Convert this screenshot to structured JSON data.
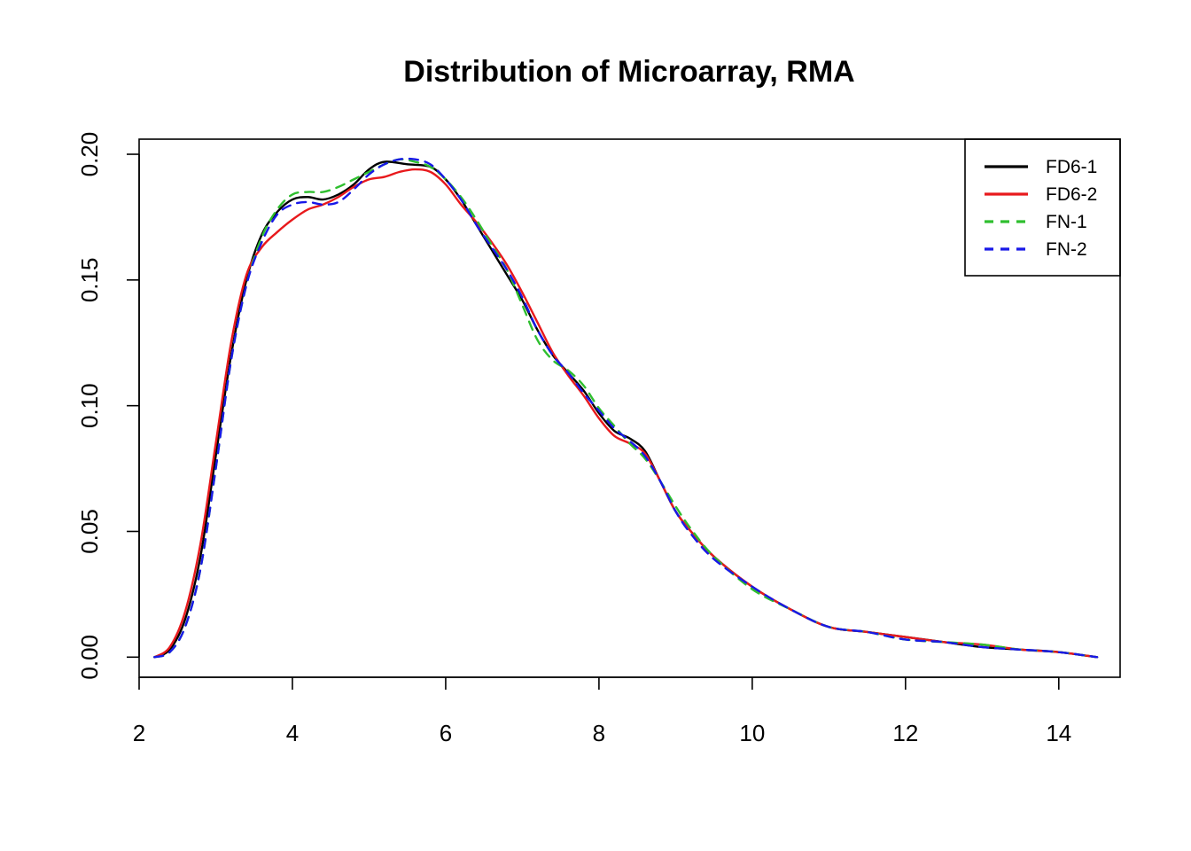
{
  "chart_data": {
    "type": "line",
    "title": "Distribution of Microarray, RMA",
    "xlabel": "",
    "ylabel": "",
    "xlim": [
      2.0,
      14.8
    ],
    "ylim": [
      -0.008,
      0.206
    ],
    "x_ticks": [
      2,
      4,
      6,
      8,
      10,
      12,
      14
    ],
    "x_tick_labels": [
      "2",
      "4",
      "6",
      "8",
      "10",
      "12",
      "14"
    ],
    "y_ticks": [
      0.0,
      0.05,
      0.1,
      0.15,
      0.2
    ],
    "y_tick_labels": [
      "0.00",
      "0.05",
      "0.10",
      "0.15",
      "0.20"
    ],
    "grid": false,
    "legend_position": "top-right",
    "series": [
      {
        "name": "FD6-1",
        "color": "#000000",
        "dash": "solid",
        "points": [
          [
            2.2,
            0.0
          ],
          [
            2.4,
            0.003
          ],
          [
            2.6,
            0.015
          ],
          [
            2.8,
            0.04
          ],
          [
            3.0,
            0.08
          ],
          [
            3.2,
            0.12
          ],
          [
            3.4,
            0.15
          ],
          [
            3.6,
            0.168
          ],
          [
            3.8,
            0.177
          ],
          [
            4.0,
            0.182
          ],
          [
            4.2,
            0.183
          ],
          [
            4.4,
            0.182
          ],
          [
            4.6,
            0.184
          ],
          [
            4.8,
            0.188
          ],
          [
            5.0,
            0.194
          ],
          [
            5.2,
            0.197
          ],
          [
            5.5,
            0.196
          ],
          [
            5.8,
            0.195
          ],
          [
            6.0,
            0.19
          ],
          [
            6.2,
            0.182
          ],
          [
            6.4,
            0.172
          ],
          [
            6.6,
            0.162
          ],
          [
            6.8,
            0.152
          ],
          [
            7.0,
            0.142
          ],
          [
            7.2,
            0.13
          ],
          [
            7.4,
            0.12
          ],
          [
            7.6,
            0.113
          ],
          [
            7.8,
            0.106
          ],
          [
            8.0,
            0.097
          ],
          [
            8.2,
            0.09
          ],
          [
            8.4,
            0.087
          ],
          [
            8.6,
            0.082
          ],
          [
            8.8,
            0.07
          ],
          [
            9.0,
            0.058
          ],
          [
            9.2,
            0.05
          ],
          [
            9.5,
            0.04
          ],
          [
            10.0,
            0.028
          ],
          [
            10.5,
            0.019
          ],
          [
            11.0,
            0.012
          ],
          [
            11.5,
            0.01
          ],
          [
            12.0,
            0.008
          ],
          [
            12.5,
            0.006
          ],
          [
            13.0,
            0.004
          ],
          [
            13.5,
            0.003
          ],
          [
            14.0,
            0.002
          ],
          [
            14.5,
            0.0
          ]
        ]
      },
      {
        "name": "FD6-2",
        "color": "#e8191c",
        "dash": "solid",
        "points": [
          [
            2.2,
            0.0
          ],
          [
            2.4,
            0.004
          ],
          [
            2.6,
            0.018
          ],
          [
            2.8,
            0.045
          ],
          [
            3.0,
            0.085
          ],
          [
            3.2,
            0.125
          ],
          [
            3.4,
            0.152
          ],
          [
            3.6,
            0.163
          ],
          [
            3.8,
            0.169
          ],
          [
            4.0,
            0.174
          ],
          [
            4.2,
            0.178
          ],
          [
            4.4,
            0.18
          ],
          [
            4.6,
            0.183
          ],
          [
            4.8,
            0.187
          ],
          [
            5.0,
            0.19
          ],
          [
            5.2,
            0.191
          ],
          [
            5.4,
            0.193
          ],
          [
            5.6,
            0.194
          ],
          [
            5.8,
            0.193
          ],
          [
            6.0,
            0.188
          ],
          [
            6.2,
            0.18
          ],
          [
            6.4,
            0.173
          ],
          [
            6.6,
            0.165
          ],
          [
            6.8,
            0.156
          ],
          [
            7.0,
            0.145
          ],
          [
            7.2,
            0.133
          ],
          [
            7.4,
            0.121
          ],
          [
            7.6,
            0.112
          ],
          [
            7.8,
            0.104
          ],
          [
            8.0,
            0.095
          ],
          [
            8.2,
            0.088
          ],
          [
            8.4,
            0.085
          ],
          [
            8.6,
            0.081
          ],
          [
            8.8,
            0.07
          ],
          [
            9.0,
            0.058
          ],
          [
            9.2,
            0.05
          ],
          [
            9.5,
            0.04
          ],
          [
            10.0,
            0.028
          ],
          [
            10.5,
            0.019
          ],
          [
            11.0,
            0.012
          ],
          [
            11.5,
            0.01
          ],
          [
            12.0,
            0.008
          ],
          [
            12.5,
            0.006
          ],
          [
            13.0,
            0.005
          ],
          [
            13.5,
            0.003
          ],
          [
            14.0,
            0.002
          ],
          [
            14.5,
            0.0
          ]
        ]
      },
      {
        "name": "FN-1",
        "color": "#2fbf2f",
        "dash": "dashed",
        "points": [
          [
            2.2,
            0.0
          ],
          [
            2.4,
            0.002
          ],
          [
            2.6,
            0.012
          ],
          [
            2.8,
            0.035
          ],
          [
            3.0,
            0.075
          ],
          [
            3.2,
            0.118
          ],
          [
            3.4,
            0.148
          ],
          [
            3.6,
            0.167
          ],
          [
            3.8,
            0.178
          ],
          [
            4.0,
            0.184
          ],
          [
            4.2,
            0.185
          ],
          [
            4.4,
            0.185
          ],
          [
            4.6,
            0.187
          ],
          [
            4.8,
            0.19
          ],
          [
            5.0,
            0.193
          ],
          [
            5.2,
            0.196
          ],
          [
            5.4,
            0.198
          ],
          [
            5.6,
            0.197
          ],
          [
            5.8,
            0.195
          ],
          [
            6.0,
            0.19
          ],
          [
            6.2,
            0.183
          ],
          [
            6.4,
            0.174
          ],
          [
            6.6,
            0.164
          ],
          [
            6.8,
            0.154
          ],
          [
            7.0,
            0.14
          ],
          [
            7.2,
            0.126
          ],
          [
            7.4,
            0.118
          ],
          [
            7.6,
            0.114
          ],
          [
            7.8,
            0.108
          ],
          [
            8.0,
            0.099
          ],
          [
            8.2,
            0.092
          ],
          [
            8.4,
            0.085
          ],
          [
            8.6,
            0.079
          ],
          [
            8.8,
            0.07
          ],
          [
            9.0,
            0.06
          ],
          [
            9.2,
            0.051
          ],
          [
            9.5,
            0.04
          ],
          [
            10.0,
            0.027
          ],
          [
            10.5,
            0.019
          ],
          [
            11.0,
            0.012
          ],
          [
            11.5,
            0.01
          ],
          [
            12.0,
            0.007
          ],
          [
            12.5,
            0.006
          ],
          [
            13.0,
            0.005
          ],
          [
            13.5,
            0.003
          ],
          [
            14.0,
            0.002
          ],
          [
            14.5,
            0.0
          ]
        ]
      },
      {
        "name": "FN-2",
        "color": "#1818e8",
        "dash": "dashed",
        "points": [
          [
            2.2,
            0.0
          ],
          [
            2.4,
            0.002
          ],
          [
            2.6,
            0.012
          ],
          [
            2.8,
            0.035
          ],
          [
            3.0,
            0.075
          ],
          [
            3.2,
            0.118
          ],
          [
            3.4,
            0.148
          ],
          [
            3.6,
            0.165
          ],
          [
            3.8,
            0.176
          ],
          [
            4.0,
            0.18
          ],
          [
            4.2,
            0.181
          ],
          [
            4.4,
            0.18
          ],
          [
            4.6,
            0.181
          ],
          [
            4.8,
            0.186
          ],
          [
            5.0,
            0.192
          ],
          [
            5.2,
            0.196
          ],
          [
            5.4,
            0.198
          ],
          [
            5.6,
            0.198
          ],
          [
            5.8,
            0.196
          ],
          [
            6.0,
            0.19
          ],
          [
            6.2,
            0.182
          ],
          [
            6.4,
            0.172
          ],
          [
            6.6,
            0.163
          ],
          [
            6.8,
            0.154
          ],
          [
            7.0,
            0.143
          ],
          [
            7.2,
            0.13
          ],
          [
            7.4,
            0.12
          ],
          [
            7.6,
            0.113
          ],
          [
            7.8,
            0.105
          ],
          [
            8.0,
            0.098
          ],
          [
            8.2,
            0.091
          ],
          [
            8.4,
            0.086
          ],
          [
            8.6,
            0.08
          ],
          [
            8.8,
            0.07
          ],
          [
            9.0,
            0.058
          ],
          [
            9.2,
            0.049
          ],
          [
            9.5,
            0.039
          ],
          [
            10.0,
            0.028
          ],
          [
            10.5,
            0.019
          ],
          [
            11.0,
            0.012
          ],
          [
            11.5,
            0.01
          ],
          [
            12.0,
            0.007
          ],
          [
            12.5,
            0.006
          ],
          [
            13.0,
            0.004
          ],
          [
            13.5,
            0.003
          ],
          [
            14.0,
            0.002
          ],
          [
            14.5,
            0.0
          ]
        ]
      }
    ]
  }
}
